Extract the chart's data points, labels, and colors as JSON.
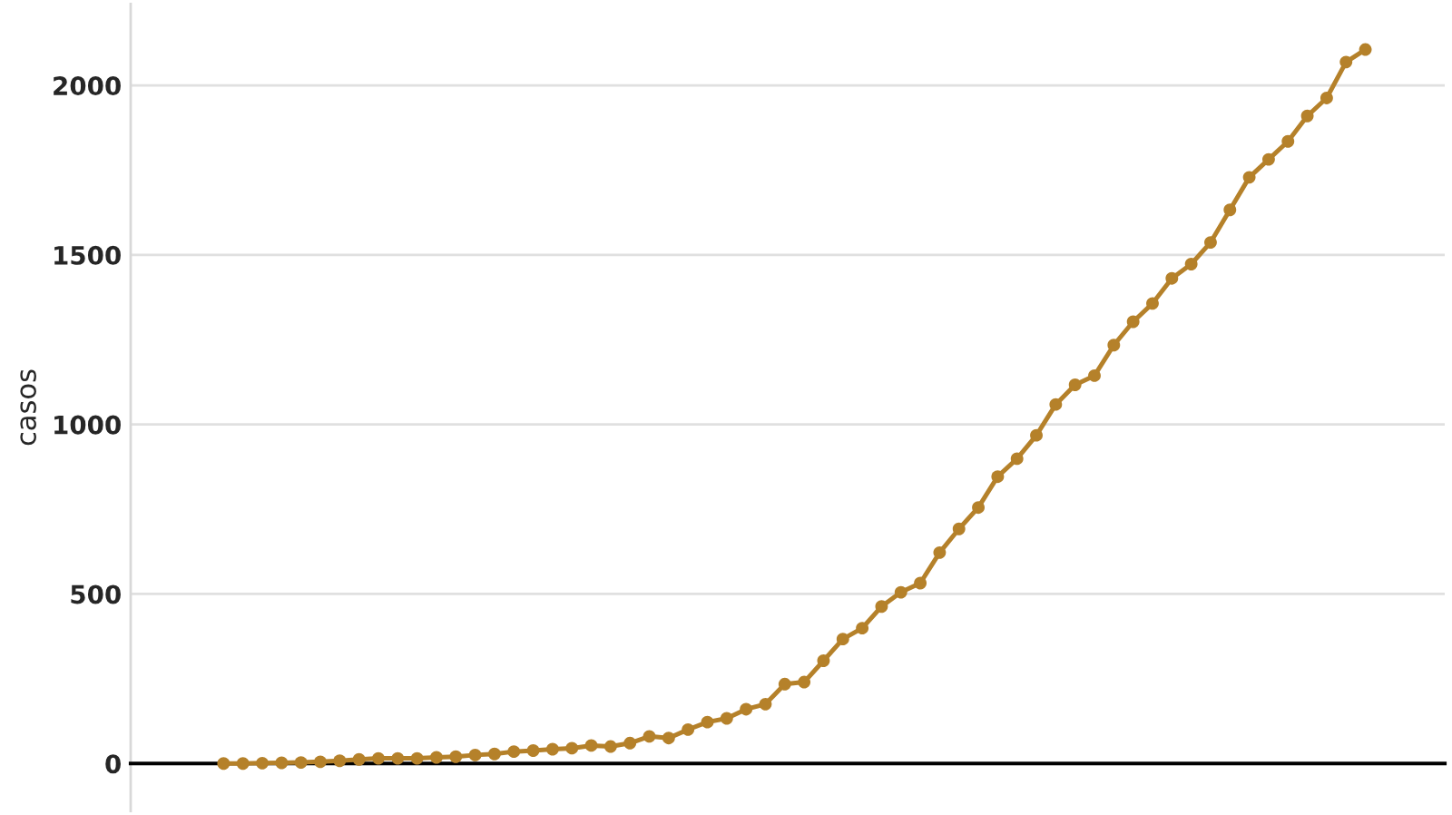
{
  "chart_data": {
    "type": "line",
    "ylabel": "casos",
    "categories": [
      null,
      null,
      null,
      null,
      null,
      null,
      null,
      null,
      null,
      null,
      null,
      null,
      null,
      null,
      null,
      null,
      null,
      null,
      null,
      null,
      null,
      null,
      null,
      null,
      null,
      null,
      null,
      null,
      null,
      null,
      null,
      null,
      null,
      null,
      null,
      null,
      null,
      null,
      null,
      null,
      null,
      null,
      null,
      null,
      null,
      null,
      null,
      null,
      null,
      null,
      null,
      null,
      null,
      null,
      null,
      null,
      null,
      null,
      null,
      null
    ],
    "series": [
      {
        "color": "#b5812a",
        "values": [
          0,
          0,
          1,
          2,
          3,
          5,
          8,
          12,
          15,
          15,
          15,
          18,
          20,
          25,
          28,
          35,
          38,
          42,
          45,
          53,
          50,
          60,
          80,
          75,
          100,
          122,
          133,
          160,
          175,
          234,
          240,
          303,
          367,
          399,
          463,
          505,
          532,
          622,
          692,
          755,
          846,
          899,
          968,
          1059,
          1117,
          1144,
          1234,
          1303,
          1357,
          1431,
          1473,
          1537,
          1633,
          1729,
          1782,
          1835,
          1910,
          1963,
          2069,
          2106
        ]
      }
    ],
    "ylim": [
      -140,
      2240
    ],
    "yticks": [
      0,
      500,
      1000,
      1500,
      2000
    ],
    "grid": "y",
    "marker": "circle",
    "line_style": "solid"
  }
}
